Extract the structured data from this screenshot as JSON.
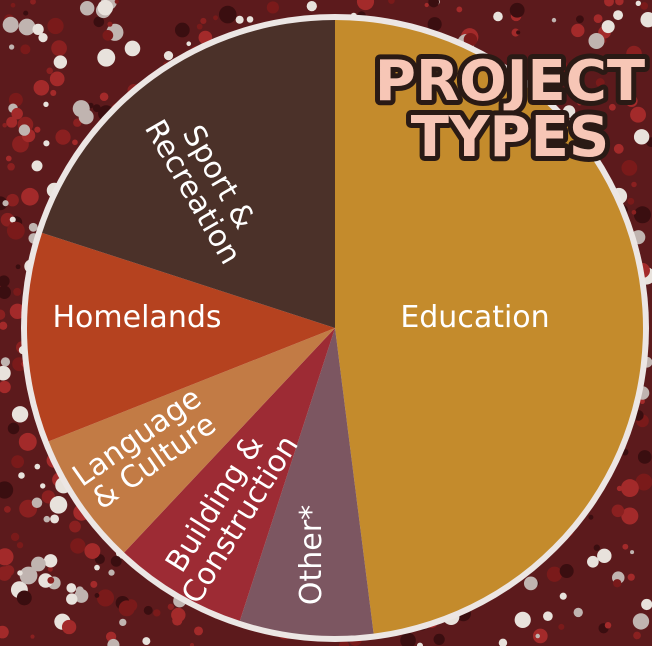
{
  "chart_data": {
    "type": "pie",
    "title": "PROJECT\nTYPES",
    "categories": [
      "Education",
      "Other*",
      "Building &\nConstruction",
      "Language\n& Culture",
      "Homelands",
      "Sport &\nRecreation"
    ],
    "values": [
      48,
      7,
      7,
      7,
      11,
      20
    ],
    "colors": [
      "#c48b2c",
      "#7c5661",
      "#9d2b34",
      "#c27b45",
      "#b5421f",
      "#4b3129"
    ]
  }
}
